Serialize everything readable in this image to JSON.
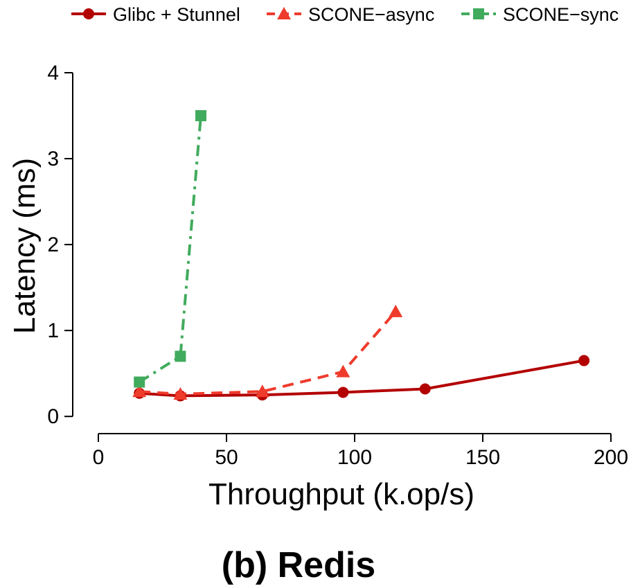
{
  "chart_data": {
    "type": "line",
    "title": "",
    "caption": "(b) Redis",
    "xlabel": "Throughput (k.op/s)",
    "ylabel": "Latency (ms)",
    "xlim": [
      -10,
      200
    ],
    "ylim": [
      -0.2,
      4
    ],
    "xticks": [
      0,
      50,
      100,
      150,
      200
    ],
    "yticks": [
      0,
      1,
      2,
      3,
      4
    ],
    "grid": false,
    "legend_position": "top",
    "series": [
      {
        "name": "Glibc + Stunnel",
        "color": "#b30000",
        "marker": "circle",
        "line_style": "solid",
        "points": [
          [
            16,
            0.27
          ],
          [
            32,
            0.24
          ],
          [
            64,
            0.25
          ],
          [
            95.5,
            0.28
          ],
          [
            127.5,
            0.32
          ],
          [
            189.5,
            0.65
          ]
        ]
      },
      {
        "name": "SCONE−async",
        "color": "#ef3b2c",
        "marker": "triangle",
        "line_style": "dashed",
        "points": [
          [
            16,
            0.29
          ],
          [
            32,
            0.26
          ],
          [
            64,
            0.29
          ],
          [
            95.5,
            0.52
          ],
          [
            116,
            1.22
          ]
        ]
      },
      {
        "name": "SCONE−sync",
        "color": "#41ab5d",
        "marker": "square",
        "line_style": "dashdot",
        "points": [
          [
            16,
            0.4
          ],
          [
            32,
            0.7
          ],
          [
            40,
            3.5
          ]
        ]
      }
    ]
  }
}
